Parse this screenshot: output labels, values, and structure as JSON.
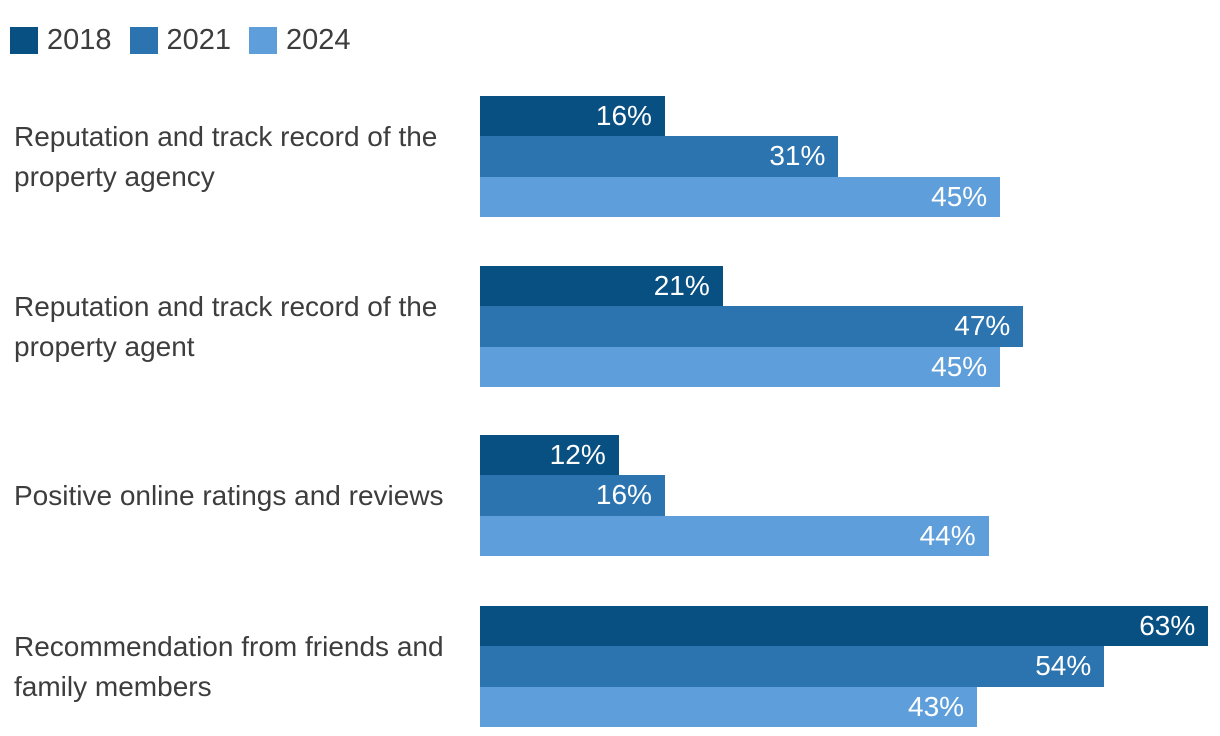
{
  "chart_data": {
    "type": "bar",
    "orientation": "horizontal",
    "unit": "percent",
    "grid": false,
    "legend_position": "top-left",
    "value_labels": "inside-end",
    "xlim": [
      0,
      63
    ],
    "categories": [
      "Reputation and track record of the property agency",
      "Reputation and track record of the property agent",
      "Positive online ratings and reviews",
      "Recommendation from friends and family members"
    ],
    "series": [
      {
        "name": "2018",
        "color": "#084f82",
        "values": [
          16,
          21,
          12,
          63
        ],
        "labels": [
          "16%",
          "21%",
          "12%",
          "63%"
        ]
      },
      {
        "name": "2021",
        "color": "#2b74af",
        "values": [
          31,
          47,
          16,
          54
        ],
        "labels": [
          "31%",
          "47%",
          "16%",
          "54%"
        ]
      },
      {
        "name": "2024",
        "color": "#5e9eda",
        "values": [
          45,
          45,
          44,
          43
        ],
        "labels": [
          "45%",
          "45%",
          "44%",
          "43%"
        ]
      }
    ],
    "text_color": "#3d3d3d",
    "value_label_color": "#ffffff"
  }
}
